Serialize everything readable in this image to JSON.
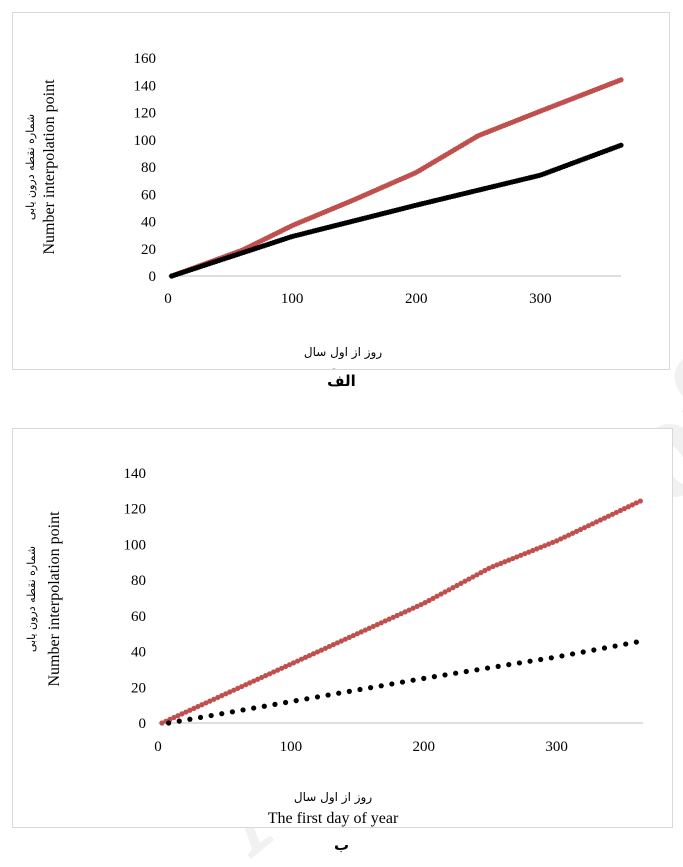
{
  "watermark": "Archive of SID",
  "chart_data": [
    {
      "type": "scatter",
      "caption": "الف",
      "xlabel_fa": "روز از اول سال",
      "xlabel_en": "The first day of year…",
      "ylabel_fa": "شماره نقطه درون یابی",
      "ylabel_en": "Number interpolation point",
      "xlim": [
        0,
        365
      ],
      "ylim": [
        0,
        160
      ],
      "xticks": [
        0,
        100,
        200,
        300
      ],
      "yticks": [
        0,
        20,
        40,
        60,
        80,
        100,
        120,
        140,
        160
      ],
      "grid": false,
      "series": [
        {
          "color": "#c0504d",
          "x_start": 3,
          "x_end": 365,
          "step": 2,
          "points": [
            [
              3,
              0
            ],
            [
              60,
              19
            ],
            [
              100,
              37
            ],
            [
              150,
              56
            ],
            [
              200,
              76
            ],
            [
              250,
              103
            ],
            [
              300,
              121
            ],
            [
              365,
              144
            ]
          ]
        },
        {
          "color": "#000000",
          "x_start": 3,
          "x_end": 365,
          "step": 2,
          "points": [
            [
              3,
              0
            ],
            [
              100,
              29
            ],
            [
              200,
              52
            ],
            [
              300,
              74
            ],
            [
              365,
              96
            ]
          ]
        }
      ]
    },
    {
      "type": "scatter",
      "caption": "ب",
      "xlabel_fa": "روز از اول سال",
      "xlabel_en": "The first day of year",
      "ylabel_fa": "شماره نقطه درون یابی",
      "ylabel_en": "Number interpolation point",
      "xlim": [
        0,
        365
      ],
      "ylim": [
        0,
        140
      ],
      "xticks": [
        0,
        100,
        200,
        300
      ],
      "yticks": [
        0,
        20,
        40,
        60,
        80,
        100,
        120,
        140
      ],
      "grid": false,
      "series": [
        {
          "color": "#c0504d",
          "x_start": 3,
          "x_end": 365,
          "step": 3,
          "points": [
            [
              3,
              0
            ],
            [
              50,
              16
            ],
            [
              100,
              33
            ],
            [
              150,
              50
            ],
            [
              200,
              67
            ],
            [
              250,
              87
            ],
            [
              300,
              102
            ],
            [
              365,
              125
            ]
          ]
        },
        {
          "color": "#000000",
          "x_start": 8,
          "x_end": 365,
          "step": 8,
          "points": [
            [
              8,
              0
            ],
            [
              100,
              12
            ],
            [
              200,
              25
            ],
            [
              300,
              37
            ],
            [
              365,
              46
            ]
          ]
        }
      ]
    }
  ]
}
